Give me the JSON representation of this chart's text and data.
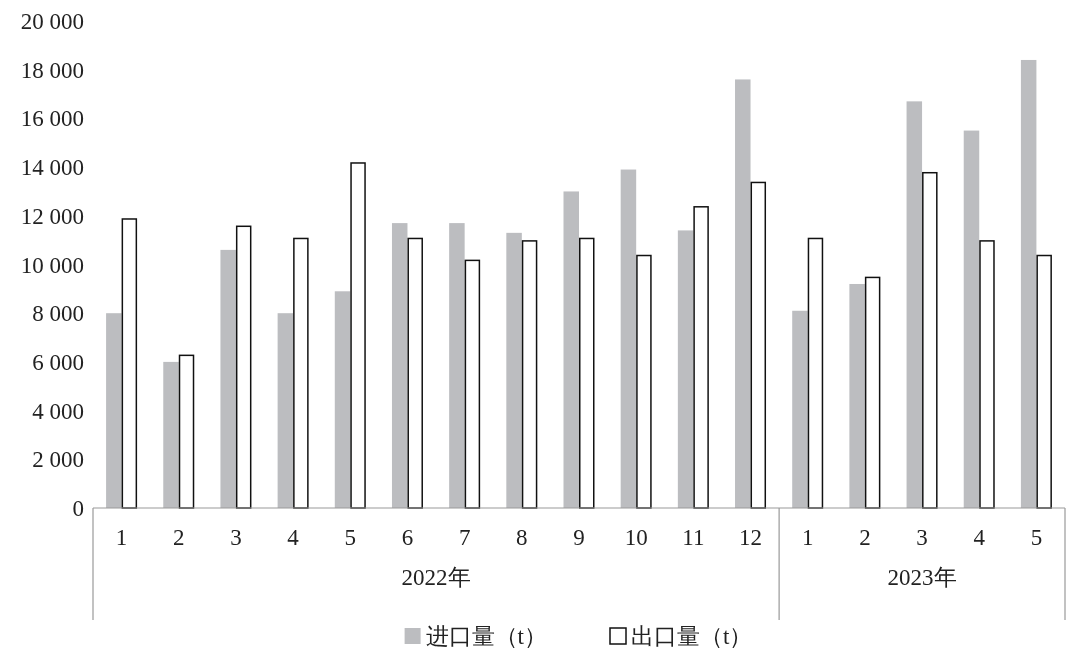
{
  "chart_data": {
    "type": "bar",
    "categories": [
      "1",
      "2",
      "3",
      "4",
      "5",
      "6",
      "7",
      "8",
      "9",
      "10",
      "11",
      "12",
      "1",
      "2",
      "3",
      "4",
      "5"
    ],
    "series": [
      {
        "name": "进口量（t）",
        "color": "#bcbdc0",
        "values": [
          8000,
          6000,
          10600,
          8000,
          8900,
          11700,
          11700,
          11300,
          13000,
          13900,
          11400,
          17600,
          8100,
          9200,
          16700,
          15500,
          18400
        ]
      },
      {
        "name": "出口量（t）",
        "color": "#ffffff",
        "values": [
          11900,
          6300,
          11600,
          11100,
          14200,
          11100,
          10200,
          11000,
          11100,
          10400,
          12400,
          13400,
          11100,
          9500,
          13800,
          11000,
          10400
        ]
      }
    ],
    "ylim": [
      0,
      20000
    ],
    "yticks": [
      0,
      {
        "value": 2000,
        "label": "2 000"
      },
      {
        "value": 4000,
        "label": "4 000"
      },
      {
        "value": 6000,
        "label": "6 000"
      },
      {
        "value": 8000,
        "label": "8 000"
      },
      {
        "value": 10000,
        "label": "10 000"
      },
      {
        "value": 12000,
        "label": "12 000"
      },
      {
        "value": 14000,
        "label": "14 000"
      },
      {
        "value": 16000,
        "label": "16 000"
      },
      {
        "value": 18000,
        "label": "18 000"
      },
      {
        "value": 20000,
        "label": "20 000"
      }
    ],
    "annotations": [
      "2022年",
      "2023年"
    ],
    "legend": "bottom"
  }
}
